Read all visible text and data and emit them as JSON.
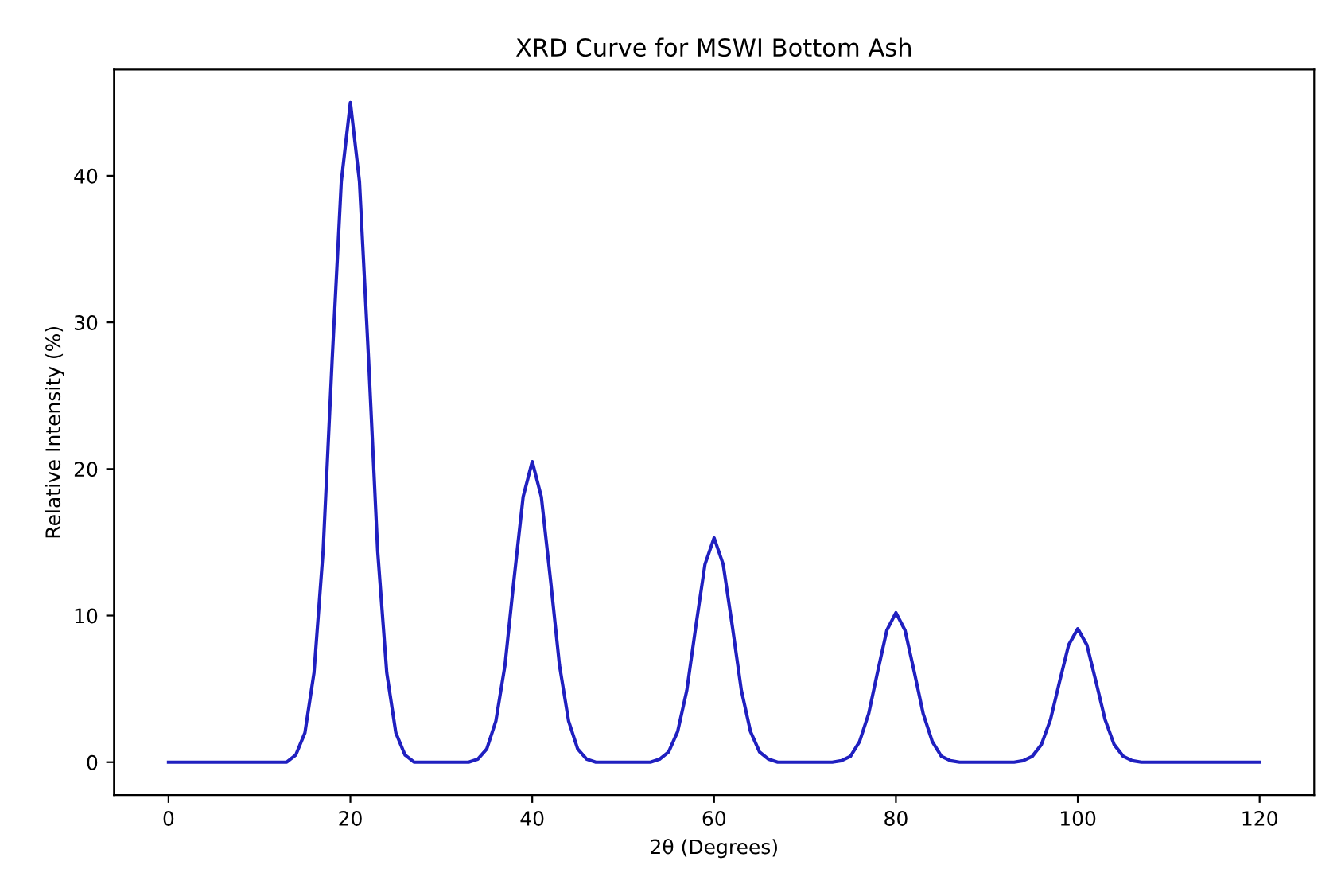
{
  "chart_data": {
    "type": "line",
    "title": "XRD Curve for MSWI Bottom Ash",
    "xlabel": "2θ (Degrees)",
    "ylabel": "Relative Intensity (%)",
    "x": [
      0,
      13,
      14,
      15,
      16,
      17,
      18,
      19,
      20,
      21,
      22,
      23,
      24,
      25,
      26,
      27,
      33,
      34,
      35,
      36,
      37,
      38,
      39,
      40,
      41,
      42,
      43,
      44,
      45,
      46,
      47,
      53,
      54,
      55,
      56,
      57,
      58,
      59,
      60,
      61,
      62,
      63,
      64,
      65,
      66,
      67,
      73,
      74,
      75,
      76,
      77,
      78,
      79,
      80,
      81,
      82,
      83,
      84,
      85,
      86,
      87,
      93,
      94,
      95,
      96,
      97,
      98,
      99,
      100,
      101,
      102,
      103,
      104,
      105,
      106,
      107,
      120
    ],
    "series": [
      {
        "color": "#2020c0",
        "values": [
          0,
          0,
          0.5,
          2,
          6.1,
          14.4,
          27.5,
          39.6,
          45,
          39.6,
          27.5,
          14.4,
          6.1,
          2,
          0.5,
          0,
          0,
          0.2,
          0.9,
          2.8,
          6.6,
          12.5,
          18.1,
          20.5,
          18.1,
          12.5,
          6.6,
          2.8,
          0.9,
          0.2,
          0,
          0,
          0.2,
          0.7,
          2.1,
          4.9,
          9.3,
          13.5,
          15.3,
          13.5,
          9.3,
          4.9,
          2.1,
          0.7,
          0.2,
          0,
          0,
          0.1,
          0.4,
          1.4,
          3.3,
          6.2,
          9,
          10.2,
          9,
          6.2,
          3.3,
          1.4,
          0.4,
          0.1,
          0,
          0,
          0.1,
          0.4,
          1.2,
          2.9,
          5.5,
          8,
          9.1,
          8,
          5.5,
          2.9,
          1.2,
          0.4,
          0.1,
          0,
          0
        ]
      }
    ],
    "xlim": [
      -6,
      126
    ],
    "xticks": [
      0,
      20,
      40,
      60,
      80,
      100,
      120
    ],
    "ylim": [
      -2.25,
      47.25
    ],
    "yticks": [
      0,
      10,
      20,
      30,
      40
    ],
    "grid": false,
    "legend": false,
    "marker": "none",
    "line_style": "solid"
  }
}
